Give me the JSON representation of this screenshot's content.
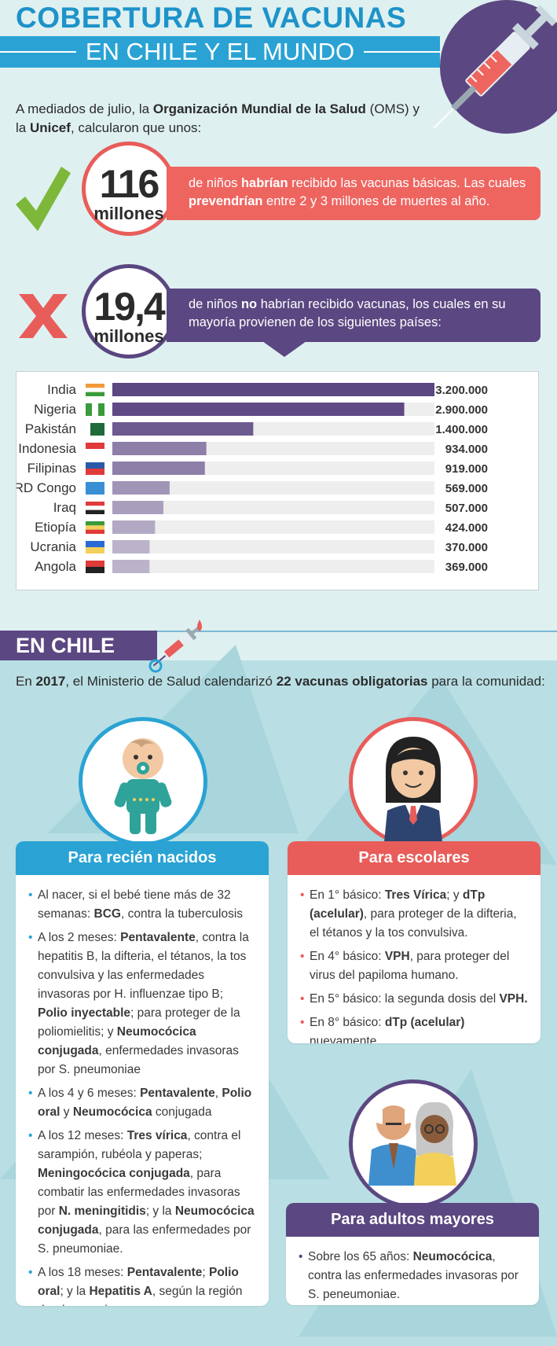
{
  "header": {
    "title_line1": "COBERTURA DE VACUNAS",
    "title_line2": "EN CHILE Y EL MUNDO"
  },
  "intro": {
    "t1": "A mediados de julio, la ",
    "t2": "Organización Mundial de la Salud",
    "t3": " (OMS) y la ",
    "t4": "Unicef",
    "t5": ", calcularon que unos:"
  },
  "stat1": {
    "number": "116",
    "unit": "millones",
    "text1": "de niños ",
    "text2": "habrían",
    "text3": " recibido las vacunas básicas. Las cuales ",
    "text4": "prevendrían",
    "text5": " entre 2 y 3 millones de muertes al año."
  },
  "stat2": {
    "number": "19,4",
    "unit": "millones",
    "text1": "de niños ",
    "text2": "no",
    "text3": " habrían recibido vacunas, los cuales en su mayoría provienen de los siguientes países:"
  },
  "chart_data": {
    "type": "bar",
    "orientation": "horizontal",
    "categories": [
      "India",
      "Nigeria",
      "Pakistán",
      "Indonesia",
      "Filipinas",
      "RD Congo",
      "Iraq",
      "Etiopía",
      "Ucrania",
      "Angola"
    ],
    "values": [
      3200000,
      2900000,
      1400000,
      934000,
      919000,
      569000,
      507000,
      424000,
      370000,
      369000
    ],
    "value_labels": [
      "3.200.000",
      "2.900.000",
      "1.400.000",
      "934.000",
      "919.000",
      "569.000",
      "507.000",
      "424.000",
      "370.000",
      "369.000"
    ],
    "xlim": [
      0,
      3200000
    ],
    "bar_colors": [
      "#5b4781",
      "#5f4a85",
      "#6d5a8f",
      "#8e7fa9",
      "#8e7fa9",
      "#a195b7",
      "#a99fbd",
      "#b2a9c4",
      "#bbb3ca",
      "#bbb3ca"
    ],
    "track_color": "#eeeeee"
  },
  "chile": {
    "title": "EN CHILE",
    "i1": "En ",
    "i2": "2017",
    "i3": ", el Ministerio de Salud calendarizó ",
    "i4": "22 vacunas obligatorias",
    "i5": " para la comunidad:"
  },
  "card1": {
    "title": "Para recién nacidos",
    "items": [
      [
        "Al nacer, si el bebé tiene más de 32 semanas: ",
        "BCG",
        ", contra la tuberculosis"
      ],
      [
        "A los 2 meses: ",
        "Pentavalente",
        ", contra la hepatitis B, la difteria, el tétanos, la tos convulsiva y las enfermedades invasoras por H. influenzae tipo B; ",
        "Polio inyectable",
        "; para proteger de la poliomielitis; y ",
        "Neumocócica conjugada",
        ", enfermedades invasoras por S. pneumoniae"
      ],
      [
        "A los 4 y 6 meses: ",
        "Pentavalente",
        ", ",
        "Polio oral",
        " y ",
        "Neumocócica",
        " conjugada"
      ],
      [
        "A los 12 meses: ",
        "Tres vírica",
        ", contra el sarampión, rubéola y paperas; ",
        "Meningocócica conjugada",
        ", para combatir las enfermedades invasoras por ",
        "N. meningitidis",
        "; y la ",
        "Neumocócica conjugada",
        ", para las enfermedades por S. pneumoniae."
      ],
      [
        "A los 18 meses: ",
        "Pentavalente",
        "; ",
        "Polio oral",
        "; y la ",
        "Hepatitis A",
        ", según la región donde uno vive."
      ]
    ]
  },
  "card2": {
    "title": "Para escolares",
    "items": [
      [
        "En 1° básico: ",
        "Tres Vírica",
        "; y ",
        "dTp (acelular)",
        ", para proteger de la difteria, el tétanos y la tos convulsiva."
      ],
      [
        "En 4° básico: ",
        "VPH",
        ", para proteger del virus del papiloma humano."
      ],
      [
        "En 5° básico: la segunda dosis del ",
        "VPH.",
        ""
      ],
      [
        "En 8° básico: ",
        "dTp (acelular)",
        " nuevamente."
      ]
    ]
  },
  "card3": {
    "title": "Para adultos mayores",
    "items": [
      [
        "Sobre los 65 años: ",
        "Neumocócica",
        ", contra las enfermedades invasoras por S. peneumoniae."
      ]
    ]
  },
  "icons": [
    "syringe-icon",
    "check-icon",
    "cross-icon",
    "baby-icon",
    "student-icon",
    "elderly-couple-icon"
  ],
  "colors": {
    "blue": "#2aa3d4",
    "red": "#e85d5a",
    "purple": "#5b4781",
    "background": "#dff0f1"
  }
}
